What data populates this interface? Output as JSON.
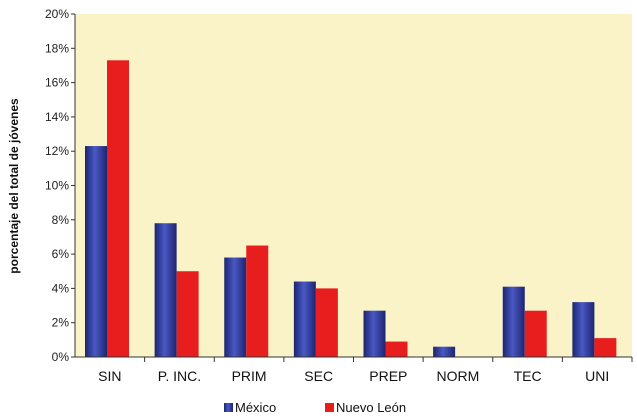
{
  "chart_data": {
    "type": "bar",
    "title": "",
    "xlabel": "",
    "ylabel": "porcentaje del total de jóvenes",
    "ylim": [
      0,
      20
    ],
    "y_unit": "%",
    "y_ticks": [
      "0%",
      "2%",
      "4%",
      "6%",
      "8%",
      "10%",
      "12%",
      "14%",
      "16%",
      "18%",
      "20%"
    ],
    "categories": [
      "SIN",
      "P. INC.",
      "PRIM",
      "SEC",
      "PREP",
      "NORM",
      "TEC",
      "UNI"
    ],
    "series": [
      {
        "name": "México",
        "color": "#2E3A9A",
        "values": [
          12.3,
          7.8,
          5.8,
          4.4,
          2.7,
          0.6,
          4.1,
          3.2
        ]
      },
      {
        "name": "Nuevo León",
        "color": "#E81E1E",
        "values": [
          17.3,
          5.0,
          6.5,
          4.0,
          0.9,
          0.0,
          2.7,
          1.1
        ]
      }
    ],
    "plot_background": "#FAF3C8",
    "grid": false,
    "legend_position": "bottom-center"
  }
}
